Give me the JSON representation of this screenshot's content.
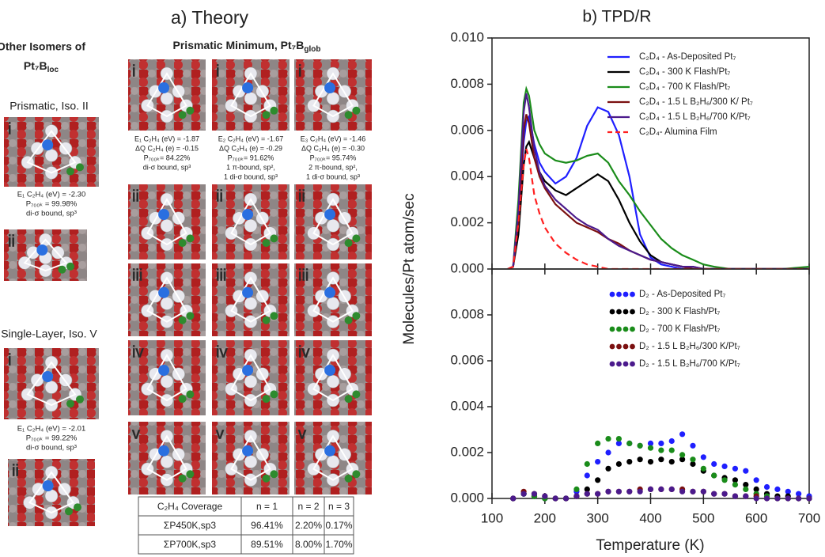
{
  "theory": {
    "title": "a) Theory",
    "isomers": {
      "title": [
        "Other Isomers of",
        "Pt₇B"
      ],
      "title_sub": "loc",
      "groups": [
        {
          "name": "Prismatic, Iso. II",
          "tiles": [
            "i",
            "ii"
          ],
          "caption": [
            "E₁ C₂H₄ (eV) = -2.30",
            "P₇₀₀ₖ = 99.98%",
            "di-σ bound, sp³"
          ]
        },
        {
          "name": "Single-Layer, Iso. V",
          "tiles": [
            "i",
            "ii"
          ],
          "caption": [
            "E₁ C₂H₄ (eV) = -2.01",
            "P₇₀₀ₖ = 99.22%",
            "di-σ bound, sp³"
          ]
        }
      ]
    },
    "minimum": {
      "title": "Prismatic Minimum, Pt₇B",
      "title_sub": "glob",
      "columns": [
        {
          "tiles": [
            "i",
            "ii",
            "iii",
            "iv",
            "v"
          ],
          "caption": [
            "E₁ C₂H₄ (eV) = -1.87",
            "ΔQ C₂H₄ (e) = -0.15",
            "P₇₀₀ₖ= 84.22%",
            "di-σ bound, sp³"
          ]
        },
        {
          "tiles": [
            "i",
            "ii",
            "iii",
            "iv",
            "v"
          ],
          "caption": [
            "E₂ C₂H₄ (eV) = -1.67",
            "ΔQ C₂H₄ (e) = -0.29",
            "P₇₀₀ₖ= 91.62%",
            "1 π-bound, sp²,",
            "1 di-σ bound, sp³"
          ]
        },
        {
          "tiles": [
            "i",
            "ii",
            "iii",
            "iv",
            "v"
          ],
          "caption": [
            "E₃ C₂H₄ (eV) = -1.46",
            "ΔQ C₂H₄ (e) = -0.30",
            "P₇₀₀ₖ= 95.74%",
            "2 π-bound, sp²,",
            "1 di-σ bound, sp³"
          ]
        }
      ]
    },
    "table": {
      "rows": [
        [
          "C₂H₄ Coverage",
          "n = 1",
          "n = 2",
          "n = 3"
        ],
        [
          "ΣP450K,sp3",
          "96.41%",
          "2.20%",
          "0.17%"
        ],
        [
          "ΣP700K,sp3",
          "89.51%",
          "8.00%",
          "1.70%"
        ]
      ]
    }
  },
  "chart_data": [
    {
      "type": "line",
      "title": "b) TPD/R",
      "ylabel": "Molecules/Pt atom/sec",
      "xlim": [
        100,
        700
      ],
      "xticks": [
        100,
        200,
        300,
        400,
        500,
        600,
        700
      ],
      "ylim": [
        0,
        0.01
      ],
      "yticks": [
        {
          "value": 0,
          "label": "0.000"
        },
        {
          "value": 0.002,
          "label": "0.002"
        },
        {
          "value": 0.004,
          "label": "0.004"
        },
        {
          "value": 0.006,
          "label": "0.006"
        },
        {
          "value": 0.008,
          "label": "0.008"
        },
        {
          "value": 0.01,
          "label": "0.010"
        }
      ],
      "x": [
        130,
        140,
        150,
        160,
        165,
        170,
        180,
        190,
        200,
        220,
        240,
        260,
        280,
        300,
        320,
        340,
        360,
        380,
        400,
        420,
        440,
        460,
        480,
        500,
        520,
        550,
        600,
        650,
        700
      ],
      "series": [
        {
          "name": "C₂D₄ - As-Deposited Pt₇",
          "color": "#1f1fff",
          "values": [
            0,
            0.0001,
            0.002,
            0.0055,
            0.0064,
            0.0066,
            0.0054,
            0.0046,
            0.0042,
            0.0037,
            0.004,
            0.0048,
            0.0062,
            0.007,
            0.0068,
            0.0058,
            0.004,
            0.0015,
            0.0005,
            0.0002,
            0.0001,
            0,
            0,
            0,
            0,
            0,
            0,
            0,
            0
          ]
        },
        {
          "name": "C₂D₄ - 300 K Flash/Pt₇",
          "color": "#000000",
          "values": [
            0,
            0.0001,
            0.0015,
            0.0045,
            0.0053,
            0.0055,
            0.0048,
            0.0042,
            0.0038,
            0.0034,
            0.0032,
            0.0035,
            0.0038,
            0.0041,
            0.0038,
            0.003,
            0.002,
            0.0012,
            0.0006,
            0.0003,
            0.0002,
            0.0001,
            0.0001,
            0,
            0,
            0,
            0,
            0,
            0
          ]
        },
        {
          "name": "C₂D₄ - 700 K Flash/Pt₇",
          "color": "#1a8c1a",
          "values": [
            0,
            0.0001,
            0.003,
            0.0072,
            0.0078,
            0.0075,
            0.006,
            0.0054,
            0.005,
            0.0047,
            0.0046,
            0.0047,
            0.0049,
            0.005,
            0.0046,
            0.0038,
            0.0032,
            0.0025,
            0.0019,
            0.0013,
            0.0009,
            0.0006,
            0.0004,
            0.0002,
            0.0001,
            0,
            0,
            0,
            0.0001
          ]
        },
        {
          "name": "C₂D₄ - 1.5 L B₂H₆/300 K/ Pt₇",
          "color": "#7b1010",
          "values": [
            0,
            0.0001,
            0.002,
            0.006,
            0.0067,
            0.0063,
            0.0048,
            0.004,
            0.0035,
            0.0028,
            0.0024,
            0.002,
            0.0018,
            0.0016,
            0.0013,
            0.0011,
            0.0008,
            0.0006,
            0.0004,
            0.0003,
            0.0002,
            0.0001,
            0,
            0,
            0,
            0,
            0,
            0,
            0
          ]
        },
        {
          "name": "C₂D₄ - 1.5 L B₂H₆/700 K/Pt₇",
          "color": "#4b1a8c",
          "values": [
            0,
            0.0001,
            0.0025,
            0.0068,
            0.0076,
            0.007,
            0.0052,
            0.0042,
            0.0036,
            0.003,
            0.0026,
            0.0022,
            0.0019,
            0.0017,
            0.0013,
            0.001,
            0.0008,
            0.0006,
            0.0004,
            0.0003,
            0.0002,
            0.0001,
            0.0001,
            0,
            0,
            0,
            0,
            0,
            0
          ]
        },
        {
          "name": "C₂D₄- Alumina Film",
          "color": "#ff2020",
          "dash": true,
          "values": [
            0,
            0.0001,
            0.002,
            0.0045,
            0.0052,
            0.0048,
            0.0032,
            0.0024,
            0.0018,
            0.0011,
            0.0007,
            0.0004,
            0.0002,
            0.0001,
            0,
            0,
            0,
            0,
            0,
            0,
            0,
            0,
            0,
            0,
            0,
            0,
            0,
            0,
            0
          ]
        }
      ]
    },
    {
      "type": "scatter",
      "xlabel": "Temperature (K)",
      "xlim": [
        100,
        700
      ],
      "xticks": [
        100,
        200,
        300,
        400,
        500,
        600,
        700
      ],
      "ylim": [
        0,
        0.01
      ],
      "yticks": [
        {
          "value": 0,
          "label": "0.000"
        },
        {
          "value": 0.002,
          "label": "0.002"
        },
        {
          "value": 0.004,
          "label": "0.004"
        },
        {
          "value": 0.006,
          "label": "0.006"
        },
        {
          "value": 0.008,
          "label": "0.008"
        }
      ],
      "x": [
        140,
        160,
        180,
        200,
        220,
        240,
        260,
        280,
        300,
        320,
        340,
        360,
        380,
        400,
        420,
        440,
        460,
        480,
        500,
        520,
        540,
        560,
        580,
        600,
        620,
        640,
        660,
        680,
        700
      ],
      "series": [
        {
          "name": "D₂ - As-Deposited Pt₇",
          "color": "#1f1fff",
          "values": [
            0,
            0.0002,
            0.0001,
            0,
            0,
            0,
            0.0003,
            0.001,
            0.0016,
            0.002,
            0.0024,
            0.0024,
            0.0023,
            0.0024,
            0.0024,
            0.0025,
            0.0028,
            0.0023,
            0.0018,
            0.0015,
            0.0014,
            0.0013,
            0.0012,
            0.0008,
            0.0005,
            0.0004,
            0.0003,
            0.0002,
            0.0001
          ]
        },
        {
          "name": "D₂ - 300 K Flash/Pt₇",
          "color": "#000000",
          "values": [
            0,
            0.0002,
            0.0001,
            0,
            0,
            0,
            0.0001,
            0.0004,
            0.0008,
            0.0013,
            0.0015,
            0.0016,
            0.0017,
            0.0016,
            0.0017,
            0.0016,
            0.0017,
            0.0015,
            0.0012,
            0.001,
            0.0009,
            0.0008,
            0.0006,
            0.0004,
            0.0002,
            0.0001,
            0.0001,
            0,
            0
          ]
        },
        {
          "name": "D₂ - 700 K Flash/Pt₇",
          "color": "#1a8c1a",
          "values": [
            0,
            0.0002,
            0.0001,
            0,
            0,
            0,
            0.0004,
            0.0015,
            0.0024,
            0.0026,
            0.0026,
            0.0024,
            0.0023,
            0.0022,
            0.0021,
            0.0021,
            0.0019,
            0.0017,
            0.0013,
            0.001,
            0.0008,
            0.0006,
            0.0004,
            0.0002,
            0.0001,
            0,
            0,
            0,
            0
          ]
        },
        {
          "name": "D₂ - 1.5 L B₂H₆/300 K/Pt₇",
          "color": "#7b1010",
          "values": [
            0,
            0.0003,
            0.0002,
            0.0001,
            0,
            0,
            0.0001,
            0.0002,
            0.0002,
            0.0003,
            0.0003,
            0.0003,
            0.0004,
            0.0004,
            0.0004,
            0.0004,
            0.0004,
            0.0003,
            0.0003,
            0.0002,
            0.0002,
            0.0001,
            0.0001,
            0.0001,
            0,
            0,
            0,
            0,
            0
          ]
        },
        {
          "name": "D₂ - 1.5 L B₂H₆/700 K/Pt₇",
          "color": "#4b1a8c",
          "values": [
            0,
            0.0002,
            0.0002,
            0.0001,
            0,
            0,
            0.0001,
            0.0002,
            0.0002,
            0.0003,
            0.0003,
            0.0003,
            0.0003,
            0.0004,
            0.0004,
            0.0004,
            0.0003,
            0.0003,
            0.0003,
            0.0002,
            0.0002,
            0.0001,
            0.0001,
            0,
            0,
            0,
            0,
            0,
            0
          ]
        }
      ]
    }
  ]
}
